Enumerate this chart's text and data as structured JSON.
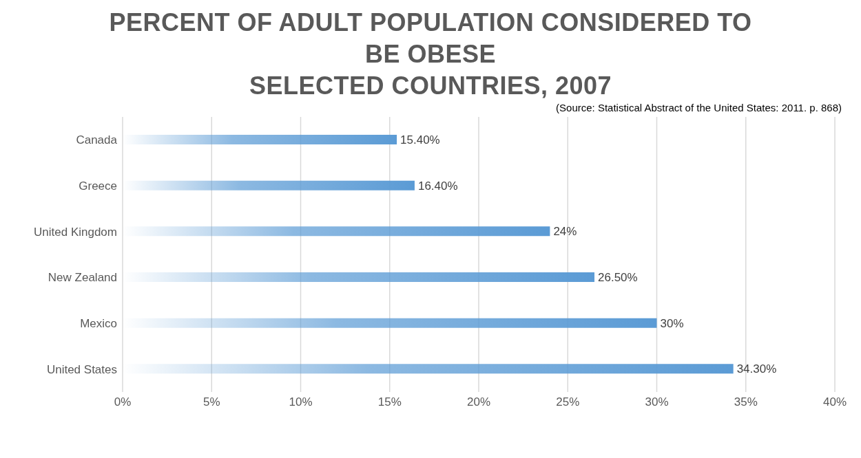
{
  "chart_data": {
    "type": "bar",
    "orientation": "horizontal",
    "title": "PERCENT OF ADULT POPULATION CONSIDERED TO BE OBESE\nSELECTED COUNTRIES, 2007",
    "annotations": [
      "(Source: Statistical Abstract of the United States: 2011. p. 868)"
    ],
    "categories": [
      "Canada",
      "Greece",
      "United Kingdom",
      "New Zealand",
      "Mexico",
      "United States"
    ],
    "values": [
      15.4,
      16.4,
      24,
      26.5,
      30,
      34.3
    ],
    "value_labels": [
      "15.40%",
      "16.40%",
      "24%",
      "26.50%",
      "30%",
      "34.30%"
    ],
    "color": "#5b9bd5",
    "xlim": [
      0,
      40
    ],
    "xticks": [
      {
        "value": 0,
        "label": "0%"
      },
      {
        "value": 5,
        "label": "5%"
      },
      {
        "value": 10,
        "label": "10%"
      },
      {
        "value": 15,
        "label": "15%"
      },
      {
        "value": 20,
        "label": "20%"
      },
      {
        "value": 25,
        "label": "25%"
      },
      {
        "value": 30,
        "label": "30%"
      },
      {
        "value": 35,
        "label": "35%"
      },
      {
        "value": 40,
        "label": "40%"
      }
    ],
    "grid": "x"
  }
}
